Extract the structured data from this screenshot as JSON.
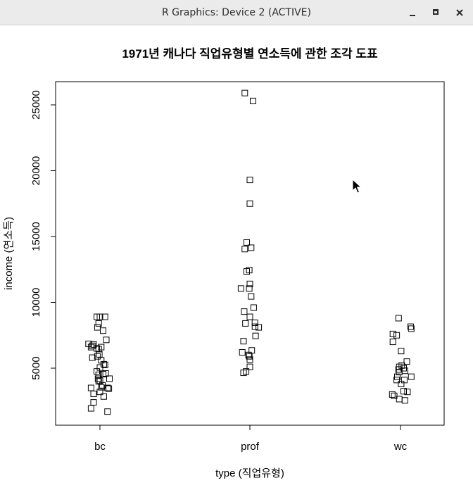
{
  "window": {
    "title": "R Graphics: Device 2 (ACTIVE)",
    "buttons": {
      "minimize": "minimize-icon",
      "maximize": "maximize-icon",
      "close": "close-icon"
    }
  },
  "chart_data": {
    "type": "scatter",
    "title": "1971년 캐나다 직업유형별 연소득에 관한 조각 도표",
    "xlabel": "type (직업유형)",
    "ylabel": "income (연소득)",
    "categories": [
      "bc",
      "prof",
      "wc"
    ],
    "yticks": [
      5000,
      10000,
      15000,
      20000,
      25000
    ],
    "ylim": [
      900,
      26400
    ],
    "marker": "open-square",
    "grid": false,
    "series": [
      {
        "category": "bc",
        "points": [
          [
            0.95,
            8900
          ],
          [
            1.0,
            8900
          ],
          [
            1.08,
            8900
          ],
          [
            0.98,
            8400
          ],
          [
            0.96,
            8100
          ],
          [
            1.05,
            7850
          ],
          [
            0.82,
            6850
          ],
          [
            0.88,
            6700
          ],
          [
            0.86,
            6600
          ],
          [
            1.02,
            6600
          ],
          [
            0.95,
            6500
          ],
          [
            0.98,
            6450
          ],
          [
            0.9,
            6800
          ],
          [
            1.1,
            7150
          ],
          [
            0.99,
            6050
          ],
          [
            0.96,
            5900
          ],
          [
            0.88,
            5800
          ],
          [
            1.02,
            5600
          ],
          [
            1.06,
            5300
          ],
          [
            1.08,
            5250
          ],
          [
            1.0,
            5050
          ],
          [
            0.95,
            4750
          ],
          [
            0.98,
            4500
          ],
          [
            1.09,
            4600
          ],
          [
            1.05,
            4550
          ],
          [
            0.97,
            4200
          ],
          [
            1.15,
            4200
          ],
          [
            1.0,
            4050
          ],
          [
            0.98,
            4000
          ],
          [
            1.04,
            3700
          ],
          [
            0.86,
            3500
          ],
          [
            1.02,
            3550
          ],
          [
            1.12,
            3500
          ],
          [
            1.14,
            3450
          ],
          [
            1.0,
            3200
          ],
          [
            0.9,
            3050
          ],
          [
            1.06,
            2850
          ],
          [
            0.9,
            2400
          ],
          [
            0.86,
            1950
          ],
          [
            1.12,
            1700
          ]
        ]
      },
      {
        "category": "prof",
        "points": [
          [
            0.92,
            25900
          ],
          [
            1.05,
            25300
          ],
          [
            1.0,
            19300
          ],
          [
            1.0,
            17500
          ],
          [
            0.95,
            14550
          ],
          [
            0.92,
            14050
          ],
          [
            1.02,
            14150
          ],
          [
            0.95,
            12350
          ],
          [
            0.99,
            12450
          ],
          [
            1.0,
            11400
          ],
          [
            0.86,
            11050
          ],
          [
            0.99,
            11050
          ],
          [
            1.02,
            10450
          ],
          [
            1.06,
            9600
          ],
          [
            0.91,
            9300
          ],
          [
            1.0,
            8900
          ],
          [
            0.93,
            8400
          ],
          [
            1.08,
            8450
          ],
          [
            1.08,
            8150
          ],
          [
            1.14,
            8100
          ],
          [
            1.09,
            7450
          ],
          [
            0.9,
            7050
          ],
          [
            1.03,
            6350
          ],
          [
            0.88,
            6200
          ],
          [
            0.98,
            6000
          ],
          [
            0.99,
            5900
          ],
          [
            1.0,
            5650
          ],
          [
            1.0,
            5100
          ],
          [
            0.94,
            4750
          ],
          [
            0.9,
            4650
          ]
        ]
      },
      {
        "category": "wc",
        "points": [
          [
            0.97,
            8800
          ],
          [
            1.16,
            8150
          ],
          [
            1.17,
            8000
          ],
          [
            0.88,
            7600
          ],
          [
            0.94,
            7500
          ],
          [
            0.88,
            7000
          ],
          [
            1.01,
            6300
          ],
          [
            1.1,
            5500
          ],
          [
            1.02,
            5200
          ],
          [
            0.98,
            5100
          ],
          [
            1.05,
            5000
          ],
          [
            0.97,
            4900
          ],
          [
            0.98,
            4700
          ],
          [
            1.07,
            4800
          ],
          [
            1.17,
            4350
          ],
          [
            0.95,
            4350
          ],
          [
            0.94,
            4100
          ],
          [
            1.06,
            4100
          ],
          [
            1.01,
            3800
          ],
          [
            1.05,
            3250
          ],
          [
            1.11,
            3200
          ],
          [
            0.9,
            2900
          ],
          [
            0.87,
            3000
          ],
          [
            0.98,
            2650
          ],
          [
            1.07,
            2550
          ]
        ]
      }
    ]
  }
}
